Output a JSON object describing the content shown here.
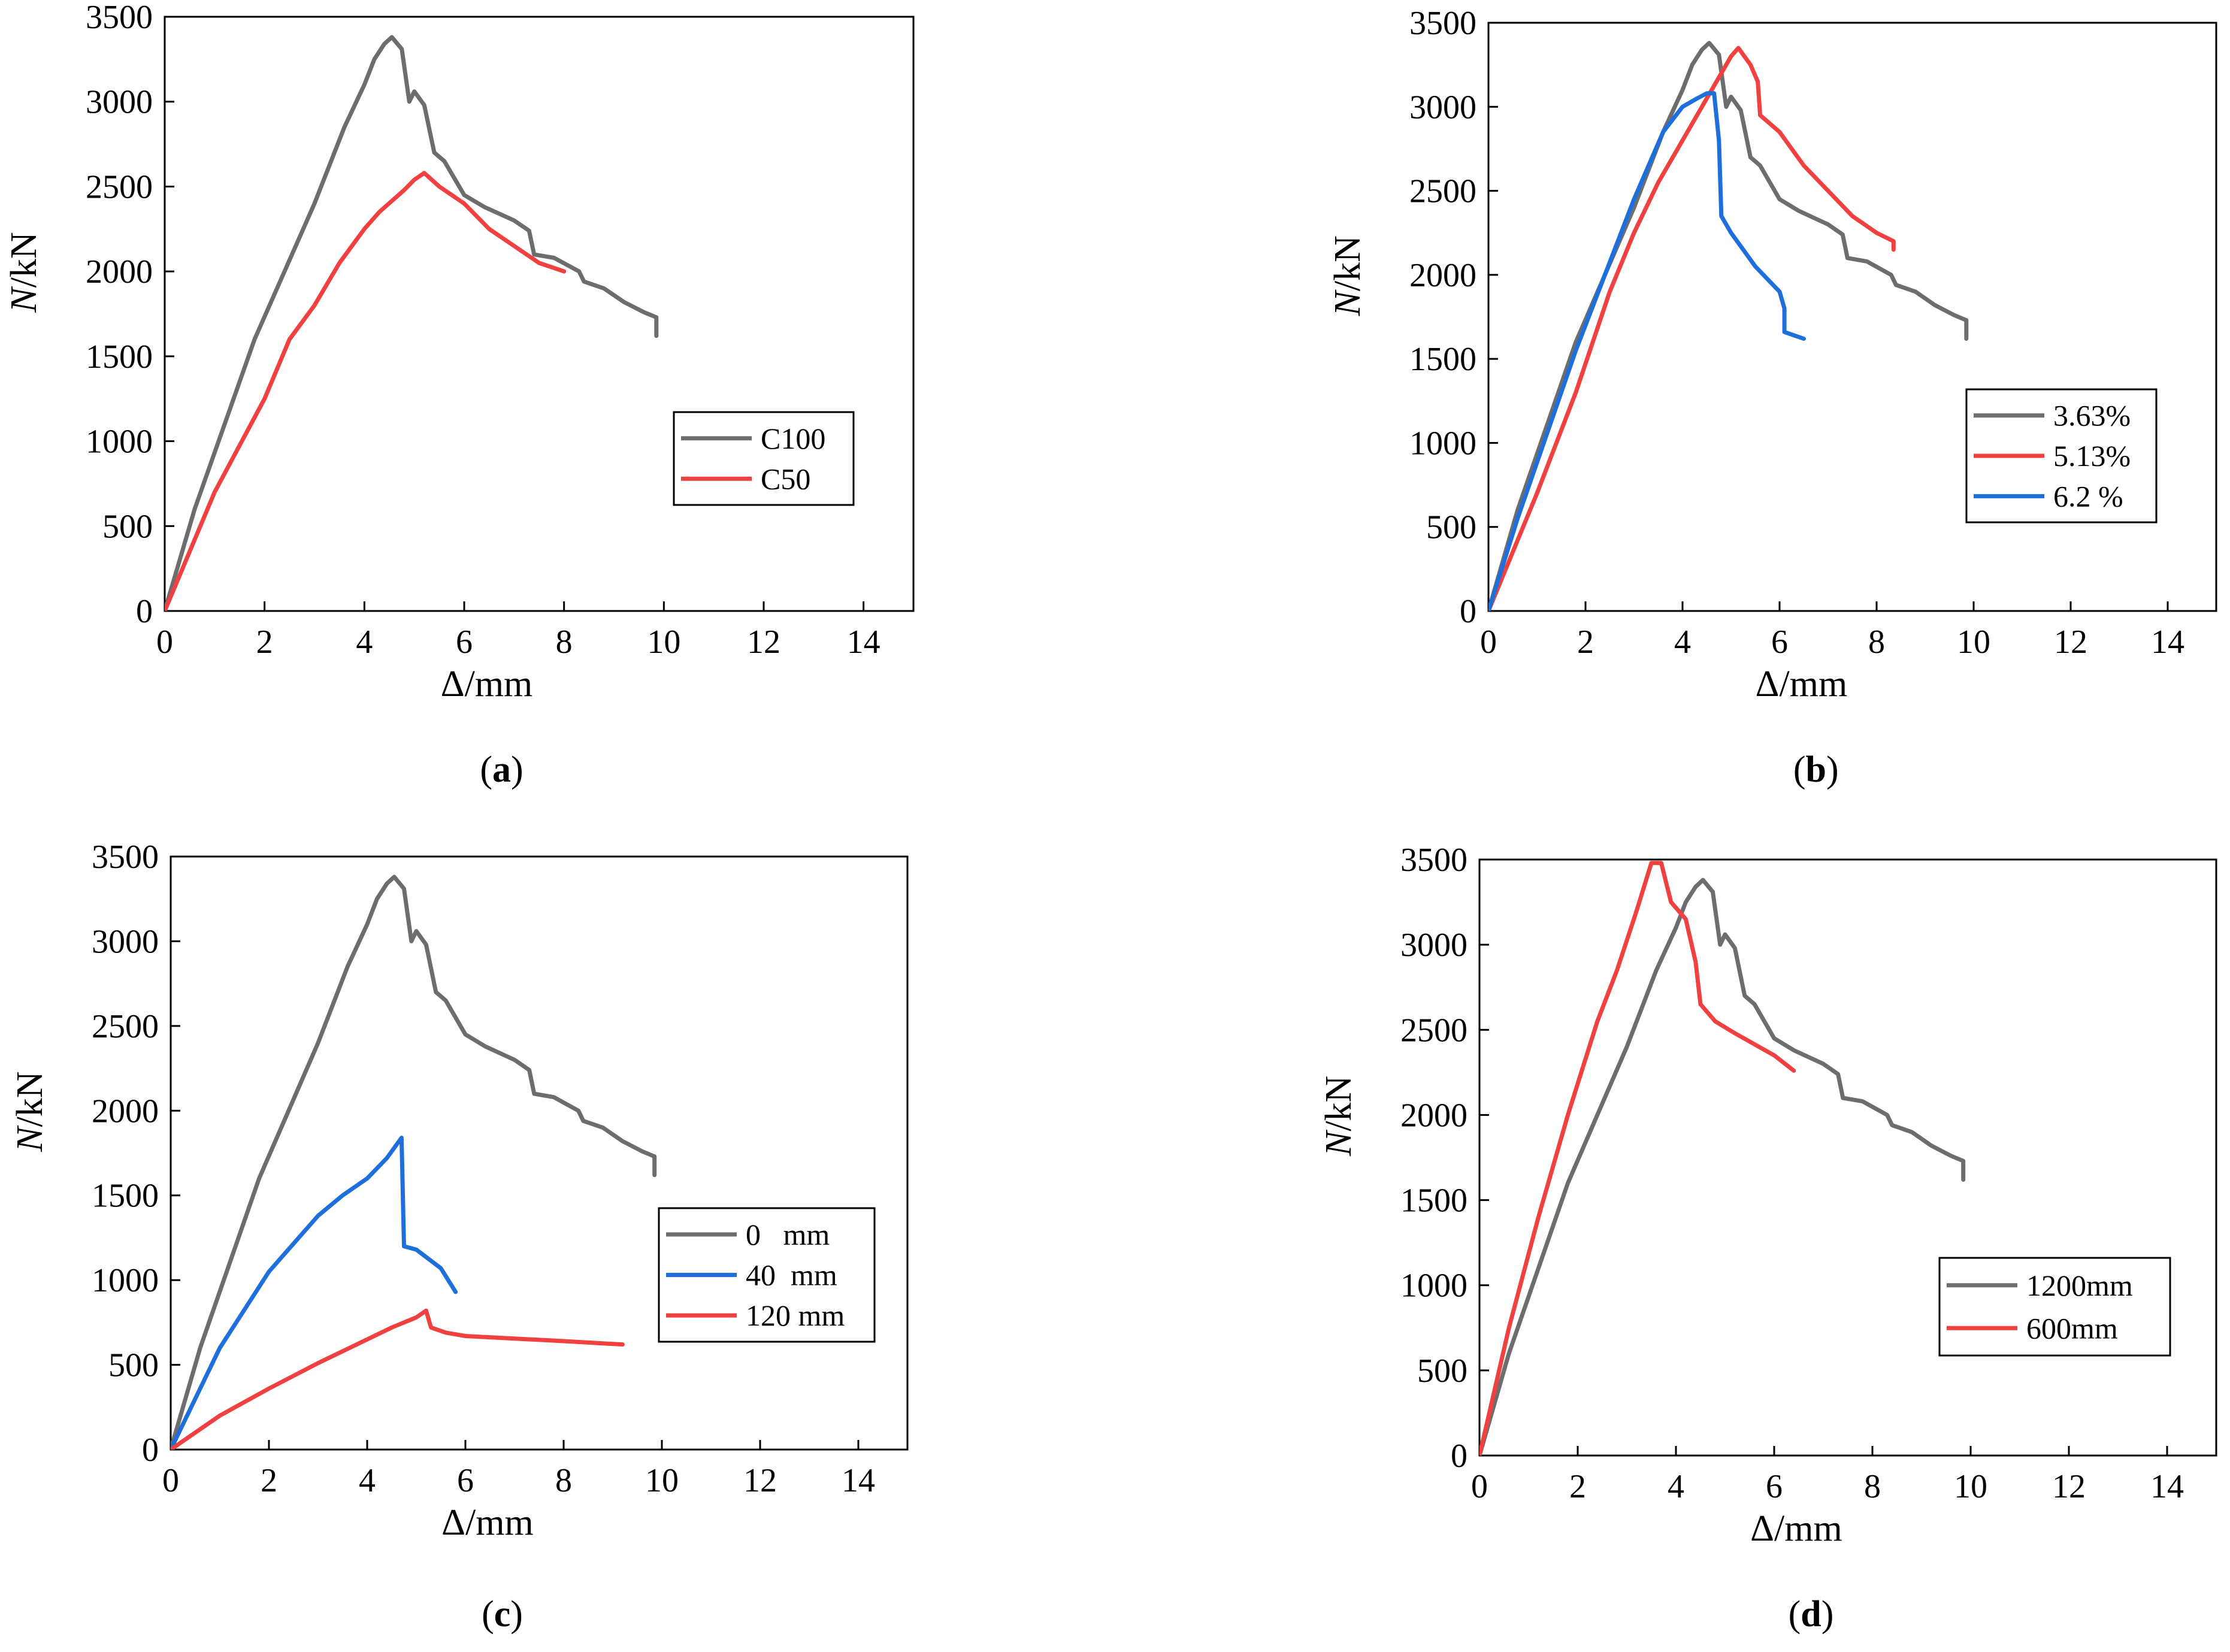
{
  "figure": {
    "panels": [
      "a",
      "b",
      "c",
      "d"
    ]
  },
  "chart_data": [
    {
      "id": "a",
      "panel_label": "a",
      "type": "line",
      "xlabel": "Δ/mm",
      "ylabel_italic": "N",
      "ylabel_rest": "/kN",
      "xlim": [
        0,
        15
      ],
      "ylim": [
        0,
        3500
      ],
      "x_ticks": [
        0,
        2,
        4,
        6,
        8,
        10,
        12,
        14
      ],
      "y_ticks": [
        0,
        500,
        1000,
        1500,
        2000,
        2500,
        3000,
        3500
      ],
      "grid": false,
      "legend_position": "center-right",
      "series": [
        {
          "name": "C100",
          "color": "#6d6d6d",
          "points": [
            [
              0,
              0
            ],
            [
              0.6,
              600
            ],
            [
              1.2,
              1100
            ],
            [
              1.8,
              1600
            ],
            [
              2.4,
              2000
            ],
            [
              3.0,
              2400
            ],
            [
              3.6,
              2850
            ],
            [
              4.0,
              3100
            ],
            [
              4.2,
              3250
            ],
            [
              4.4,
              3340
            ],
            [
              4.55,
              3380
            ],
            [
              4.75,
              3310
            ],
            [
              4.9,
              3000
            ],
            [
              5.0,
              3060
            ],
            [
              5.2,
              2980
            ],
            [
              5.4,
              2700
            ],
            [
              5.6,
              2650
            ],
            [
              6.0,
              2450
            ],
            [
              6.4,
              2380
            ],
            [
              7.0,
              2300
            ],
            [
              7.3,
              2240
            ],
            [
              7.4,
              2100
            ],
            [
              7.8,
              2080
            ],
            [
              8.3,
              2000
            ],
            [
              8.4,
              1940
            ],
            [
              8.8,
              1900
            ],
            [
              9.2,
              1820
            ],
            [
              9.6,
              1760
            ],
            [
              9.85,
              1730
            ],
            [
              9.85,
              1620
            ]
          ]
        },
        {
          "name": "C50",
          "color": "#f04040",
          "points": [
            [
              0,
              0
            ],
            [
              1.0,
              700
            ],
            [
              2.0,
              1250
            ],
            [
              2.5,
              1600
            ],
            [
              3.0,
              1800
            ],
            [
              3.5,
              2050
            ],
            [
              4.0,
              2250
            ],
            [
              4.3,
              2350
            ],
            [
              4.8,
              2480
            ],
            [
              5.0,
              2540
            ],
            [
              5.2,
              2580
            ],
            [
              5.5,
              2500
            ],
            [
              6.0,
              2400
            ],
            [
              6.5,
              2250
            ],
            [
              7.0,
              2150
            ],
            [
              7.5,
              2050
            ],
            [
              8.0,
              2000
            ]
          ]
        }
      ]
    },
    {
      "id": "b",
      "panel_label": "b",
      "type": "line",
      "xlabel": "Δ/mm",
      "ylabel_italic": "N",
      "ylabel_rest": "/kN",
      "xlim": [
        0,
        15
      ],
      "ylim": [
        0,
        3500
      ],
      "x_ticks": [
        0,
        2,
        4,
        6,
        8,
        10,
        12,
        14
      ],
      "y_ticks": [
        0,
        500,
        1000,
        1500,
        2000,
        2500,
        3000,
        3500
      ],
      "grid": false,
      "legend_position": "center-right",
      "series": [
        {
          "name": "3.63%",
          "color": "#6d6d6d",
          "points": [
            [
              0,
              0
            ],
            [
              0.6,
              600
            ],
            [
              1.2,
              1100
            ],
            [
              1.8,
              1600
            ],
            [
              2.4,
              2000
            ],
            [
              3.0,
              2400
            ],
            [
              3.6,
              2850
            ],
            [
              4.0,
              3100
            ],
            [
              4.2,
              3250
            ],
            [
              4.4,
              3340
            ],
            [
              4.55,
              3380
            ],
            [
              4.75,
              3310
            ],
            [
              4.9,
              3000
            ],
            [
              5.0,
              3060
            ],
            [
              5.2,
              2980
            ],
            [
              5.4,
              2700
            ],
            [
              5.6,
              2650
            ],
            [
              6.0,
              2450
            ],
            [
              6.4,
              2380
            ],
            [
              7.0,
              2300
            ],
            [
              7.3,
              2240
            ],
            [
              7.4,
              2100
            ],
            [
              7.8,
              2080
            ],
            [
              8.3,
              2000
            ],
            [
              8.4,
              1940
            ],
            [
              8.8,
              1900
            ],
            [
              9.2,
              1820
            ],
            [
              9.6,
              1760
            ],
            [
              9.85,
              1730
            ],
            [
              9.85,
              1620
            ]
          ]
        },
        {
          "name": "5.13%",
          "color": "#f04040",
          "points": [
            [
              0,
              0
            ],
            [
              1.0,
              700
            ],
            [
              1.8,
              1300
            ],
            [
              2.5,
              1900
            ],
            [
              3.0,
              2250
            ],
            [
              3.5,
              2550
            ],
            [
              4.0,
              2800
            ],
            [
              4.5,
              3050
            ],
            [
              4.8,
              3200
            ],
            [
              5.0,
              3300
            ],
            [
              5.15,
              3350
            ],
            [
              5.4,
              3250
            ],
            [
              5.55,
              3150
            ],
            [
              5.6,
              2950
            ],
            [
              6.0,
              2850
            ],
            [
              6.5,
              2650
            ],
            [
              7.0,
              2500
            ],
            [
              7.5,
              2350
            ],
            [
              8.0,
              2250
            ],
            [
              8.35,
              2200
            ],
            [
              8.35,
              2150
            ]
          ]
        },
        {
          "name": "6.2 %",
          "color": "#1e6fdc",
          "points": [
            [
              0,
              0
            ],
            [
              0.6,
              550
            ],
            [
              1.2,
              1050
            ],
            [
              1.8,
              1550
            ],
            [
              2.4,
              2000
            ],
            [
              3.0,
              2450
            ],
            [
              3.6,
              2850
            ],
            [
              4.0,
              3000
            ],
            [
              4.3,
              3050
            ],
            [
              4.5,
              3080
            ],
            [
              4.65,
              3080
            ],
            [
              4.75,
              2800
            ],
            [
              4.8,
              2350
            ],
            [
              5.0,
              2250
            ],
            [
              5.5,
              2050
            ],
            [
              6.0,
              1900
            ],
            [
              6.1,
              1800
            ],
            [
              6.1,
              1660
            ],
            [
              6.5,
              1620
            ]
          ]
        }
      ]
    },
    {
      "id": "c",
      "panel_label": "c",
      "type": "line",
      "xlabel": "Δ/mm",
      "ylabel_italic": "N",
      "ylabel_rest": "/kN",
      "xlim": [
        0,
        15
      ],
      "ylim": [
        0,
        3500
      ],
      "x_ticks": [
        0,
        2,
        4,
        6,
        8,
        10,
        12,
        14
      ],
      "y_ticks": [
        0,
        500,
        1000,
        1500,
        2000,
        2500,
        3000,
        3500
      ],
      "grid": false,
      "legend_position": "center-right",
      "series": [
        {
          "name": "0   mm",
          "color": "#6d6d6d",
          "points": [
            [
              0,
              0
            ],
            [
              0.6,
              600
            ],
            [
              1.2,
              1100
            ],
            [
              1.8,
              1600
            ],
            [
              2.4,
              2000
            ],
            [
              3.0,
              2400
            ],
            [
              3.6,
              2850
            ],
            [
              4.0,
              3100
            ],
            [
              4.2,
              3250
            ],
            [
              4.4,
              3340
            ],
            [
              4.55,
              3380
            ],
            [
              4.75,
              3310
            ],
            [
              4.9,
              3000
            ],
            [
              5.0,
              3060
            ],
            [
              5.2,
              2980
            ],
            [
              5.4,
              2700
            ],
            [
              5.6,
              2650
            ],
            [
              6.0,
              2450
            ],
            [
              6.4,
              2380
            ],
            [
              7.0,
              2300
            ],
            [
              7.3,
              2240
            ],
            [
              7.4,
              2100
            ],
            [
              7.8,
              2080
            ],
            [
              8.3,
              2000
            ],
            [
              8.4,
              1940
            ],
            [
              8.8,
              1900
            ],
            [
              9.2,
              1820
            ],
            [
              9.6,
              1760
            ],
            [
              9.85,
              1730
            ],
            [
              9.85,
              1620
            ]
          ]
        },
        {
          "name": "40  mm",
          "color": "#1e6fdc",
          "points": [
            [
              0,
              0
            ],
            [
              0.5,
              300
            ],
            [
              1.0,
              600
            ],
            [
              2.0,
              1050
            ],
            [
              3.0,
              1380
            ],
            [
              3.5,
              1500
            ],
            [
              4.0,
              1600
            ],
            [
              4.4,
              1720
            ],
            [
              4.7,
              1840
            ],
            [
              4.75,
              1200
            ],
            [
              5.0,
              1180
            ],
            [
              5.5,
              1070
            ],
            [
              5.8,
              930
            ]
          ]
        },
        {
          "name": "120 mm",
          "color": "#f04040",
          "points": [
            [
              0,
              0
            ],
            [
              1.0,
              200
            ],
            [
              2.0,
              360
            ],
            [
              3.0,
              510
            ],
            [
              4.0,
              650
            ],
            [
              4.5,
              720
            ],
            [
              5.0,
              780
            ],
            [
              5.2,
              820
            ],
            [
              5.3,
              720
            ],
            [
              5.6,
              690
            ],
            [
              6.0,
              670
            ],
            [
              7.0,
              655
            ],
            [
              8.0,
              640
            ],
            [
              9.2,
              620
            ]
          ]
        }
      ]
    },
    {
      "id": "d",
      "panel_label": "d",
      "type": "line",
      "xlabel": "Δ/mm",
      "ylabel_italic": "N",
      "ylabel_rest": "/kN",
      "xlim": [
        0,
        15
      ],
      "ylim": [
        0,
        3500
      ],
      "x_ticks": [
        0,
        2,
        4,
        6,
        8,
        10,
        12,
        14
      ],
      "y_ticks": [
        0,
        500,
        1000,
        1500,
        2000,
        2500,
        3000,
        3500
      ],
      "grid": false,
      "legend_position": "lower-right",
      "series": [
        {
          "name": "1200mm",
          "color": "#6d6d6d",
          "points": [
            [
              0,
              0
            ],
            [
              0.6,
              600
            ],
            [
              1.2,
              1100
            ],
            [
              1.8,
              1600
            ],
            [
              2.4,
              2000
            ],
            [
              3.0,
              2400
            ],
            [
              3.6,
              2850
            ],
            [
              4.0,
              3100
            ],
            [
              4.2,
              3250
            ],
            [
              4.4,
              3340
            ],
            [
              4.55,
              3380
            ],
            [
              4.75,
              3310
            ],
            [
              4.9,
              3000
            ],
            [
              5.0,
              3060
            ],
            [
              5.2,
              2980
            ],
            [
              5.4,
              2700
            ],
            [
              5.6,
              2650
            ],
            [
              6.0,
              2450
            ],
            [
              6.4,
              2380
            ],
            [
              7.0,
              2300
            ],
            [
              7.3,
              2240
            ],
            [
              7.4,
              2100
            ],
            [
              7.8,
              2080
            ],
            [
              8.3,
              2000
            ],
            [
              8.4,
              1940
            ],
            [
              8.8,
              1900
            ],
            [
              9.2,
              1820
            ],
            [
              9.6,
              1760
            ],
            [
              9.85,
              1730
            ],
            [
              9.85,
              1620
            ]
          ]
        },
        {
          "name": "600mm",
          "color": "#f04040",
          "points": [
            [
              0,
              0
            ],
            [
              0.6,
              750
            ],
            [
              1.2,
              1400
            ],
            [
              1.8,
              2000
            ],
            [
              2.4,
              2550
            ],
            [
              2.8,
              2850
            ],
            [
              3.2,
              3200
            ],
            [
              3.5,
              3480
            ],
            [
              3.7,
              3480
            ],
            [
              3.9,
              3250
            ],
            [
              4.2,
              3150
            ],
            [
              4.4,
              2900
            ],
            [
              4.5,
              2650
            ],
            [
              4.8,
              2550
            ],
            [
              5.2,
              2480
            ],
            [
              6.0,
              2350
            ],
            [
              6.4,
              2260
            ]
          ]
        }
      ]
    }
  ]
}
